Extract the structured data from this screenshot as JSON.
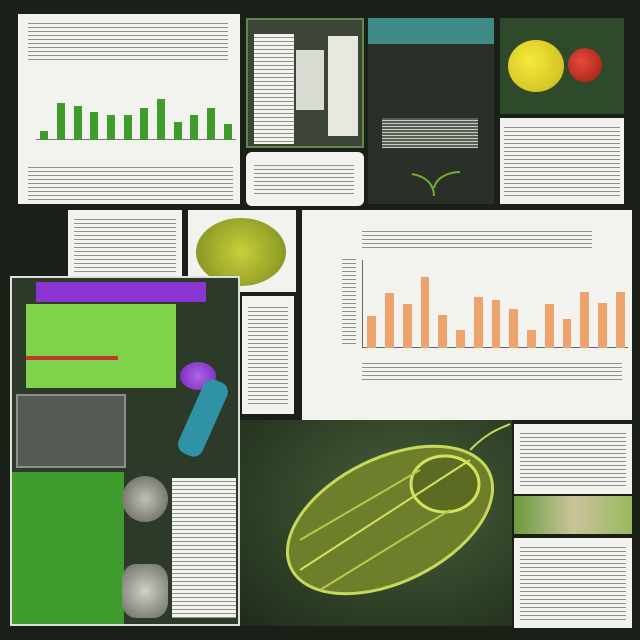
{
  "colors": {
    "background": "#1a1f18",
    "paper": "#f2f3ef",
    "accent_green": "#3f9b2c",
    "bar_orange": "#eda36e",
    "lime": "#7ed34b",
    "purple": "#8a35d3",
    "leaf": "#a6c64a"
  },
  "icons": [
    "trilobite-illustration",
    "durian-fruit-image",
    "yellow-fruit-image",
    "red-fruit-image",
    "purple-flower-image",
    "teal-feather-image",
    "fossil-image"
  ],
  "main_chart": {
    "bar_fractions": [
      0.36,
      0.62,
      0.5,
      0.81,
      0.37,
      0.2,
      0.58,
      0.54,
      0.44,
      0.21,
      0.5,
      0.33,
      0.64,
      0.51,
      0.64
    ]
  },
  "top_chart": {
    "bar_fractions": [
      0.2,
      0.8,
      0.75,
      0.6,
      0.55,
      0.55,
      0.7,
      0.9,
      0.4,
      0.55,
      0.7,
      0.35
    ]
  }
}
